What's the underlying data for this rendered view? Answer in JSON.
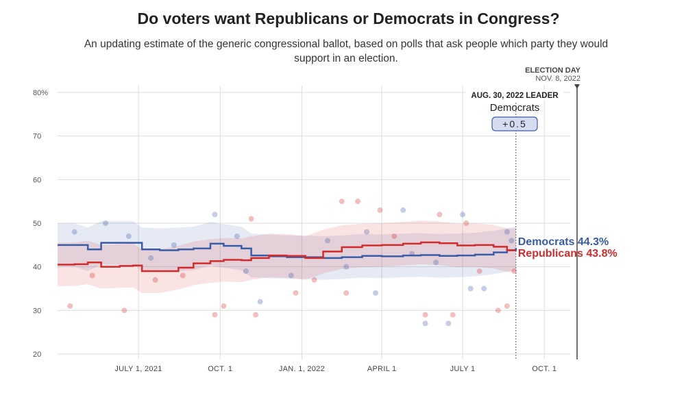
{
  "title": "Do voters want Republicans or Democrats in Congress?",
  "subtitle": "An updating estimate of the generic congressional ballot, based on polls that ask people which party they would support in an election.",
  "annotations": {
    "election_day_label": "ELECTION DAY",
    "election_day_date": "NOV. 8, 2022",
    "leader_label": "AUG. 30, 2022 LEADER",
    "leader_party": "Democrats",
    "leader_margin": "+0.5"
  },
  "colors": {
    "democrats": "#3a5ba8",
    "republicans": "#d42a2a",
    "grid": "#dddddd"
  },
  "chart_data": {
    "type": "line",
    "title": "Do voters want Republicans or Democrats in Congress?",
    "ylim": [
      20,
      80
    ],
    "yticks": [
      20,
      30,
      40,
      50,
      60,
      70,
      80
    ],
    "ytick_labels": [
      "20",
      "30",
      "40",
      "50",
      "60",
      "70",
      "80%"
    ],
    "xlim": [
      "2021-04-01",
      "2022-11-15"
    ],
    "xticks": [
      "2021-07-01",
      "2021-10-01",
      "2022-01-01",
      "2022-04-01",
      "2022-07-01",
      "2022-10-01"
    ],
    "xtick_labels": [
      "JULY 1, 2021",
      "OCT. 1",
      "JAN. 1, 2022",
      "APRIL 1",
      "JULY 1",
      "OCT. 1"
    ],
    "grid": true,
    "current_date": "2022-08-30",
    "election_date": "2022-11-08",
    "uncertainty_halfwidth": 5,
    "series": [
      {
        "name": "Democrats",
        "end_label": "44.3%",
        "color": "#3a5ba8",
        "x": [
          "2021-04-01",
          "2021-04-20",
          "2021-05-05",
          "2021-05-20",
          "2021-06-10",
          "2021-06-25",
          "2021-07-05",
          "2021-07-25",
          "2021-08-15",
          "2021-09-01",
          "2021-09-20",
          "2021-10-05",
          "2021-10-25",
          "2021-11-05",
          "2021-11-25",
          "2021-12-15",
          "2022-01-05",
          "2022-01-25",
          "2022-02-15",
          "2022-03-10",
          "2022-04-01",
          "2022-04-25",
          "2022-05-15",
          "2022-06-05",
          "2022-06-25",
          "2022-07-15",
          "2022-08-05",
          "2022-08-20",
          "2022-08-30"
        ],
        "y": [
          45,
          45,
          44,
          45.5,
          45.5,
          45.5,
          44,
          43.8,
          44,
          44.2,
          45.3,
          44.8,
          44.2,
          42.6,
          42.4,
          42.2,
          42.2,
          42,
          42.2,
          42.5,
          42.4,
          42.6,
          42.7,
          42.5,
          42.6,
          42.8,
          43.3,
          43.8,
          44.3
        ]
      },
      {
        "name": "Republicans",
        "end_label": "43.8%",
        "color": "#d42a2a",
        "x": [
          "2021-04-01",
          "2021-04-20",
          "2021-05-05",
          "2021-05-20",
          "2021-06-10",
          "2021-06-25",
          "2021-07-05",
          "2021-07-25",
          "2021-08-15",
          "2021-09-01",
          "2021-09-20",
          "2021-10-05",
          "2021-10-25",
          "2021-11-05",
          "2021-11-25",
          "2021-12-15",
          "2022-01-05",
          "2022-01-25",
          "2022-02-15",
          "2022-03-10",
          "2022-04-01",
          "2022-04-25",
          "2022-05-15",
          "2022-06-05",
          "2022-06-25",
          "2022-07-15",
          "2022-08-05",
          "2022-08-20",
          "2022-08-30"
        ],
        "y": [
          40.5,
          40.6,
          41,
          40,
          40.2,
          40.3,
          39,
          39,
          39.8,
          40.8,
          41.3,
          41.6,
          41.5,
          42,
          42.6,
          42.5,
          42,
          43.5,
          44.5,
          44.9,
          45,
          45.3,
          45.6,
          45.4,
          44.9,
          45,
          44.6,
          43.8,
          43.8
        ]
      }
    ],
    "polls": {
      "Democrats": [
        [
          "2021-04-20",
          48
        ],
        [
          "2021-05-25",
          50
        ],
        [
          "2021-06-20",
          47
        ],
        [
          "2021-08-10",
          45
        ],
        [
          "2021-09-25",
          52
        ],
        [
          "2021-10-20",
          47
        ],
        [
          "2021-11-15",
          32
        ],
        [
          "2021-12-20",
          38
        ],
        [
          "2022-01-30",
          46
        ],
        [
          "2022-03-15",
          48
        ],
        [
          "2022-03-25",
          34
        ],
        [
          "2022-04-25",
          53
        ],
        [
          "2022-05-20",
          27
        ],
        [
          "2022-06-15",
          27
        ],
        [
          "2022-07-01",
          52
        ],
        [
          "2022-07-10",
          35
        ],
        [
          "2022-07-25",
          35
        ],
        [
          "2022-08-20",
          48
        ],
        [
          "2021-07-15",
          42
        ],
        [
          "2021-10-30",
          39
        ],
        [
          "2022-02-20",
          40
        ],
        [
          "2022-05-05",
          43
        ],
        [
          "2022-06-01",
          41
        ],
        [
          "2022-08-25",
          46
        ]
      ],
      "Republicans": [
        [
          "2021-04-15",
          31
        ],
        [
          "2021-05-10",
          38
        ],
        [
          "2021-06-15",
          30
        ],
        [
          "2021-07-20",
          37
        ],
        [
          "2021-09-25",
          29
        ],
        [
          "2021-10-05",
          31
        ],
        [
          "2021-11-10",
          29
        ],
        [
          "2021-11-05",
          51
        ],
        [
          "2021-12-25",
          34
        ],
        [
          "2022-01-15",
          37
        ],
        [
          "2022-02-15",
          55
        ],
        [
          "2022-02-20",
          34
        ],
        [
          "2022-03-05",
          55
        ],
        [
          "2022-03-30",
          53
        ],
        [
          "2022-05-20",
          29
        ],
        [
          "2022-06-05",
          52
        ],
        [
          "2022-06-20",
          29
        ],
        [
          "2022-07-05",
          50
        ],
        [
          "2022-08-10",
          30
        ],
        [
          "2022-08-20",
          31
        ],
        [
          "2021-08-20",
          38
        ],
        [
          "2022-04-15",
          47
        ],
        [
          "2022-07-20",
          39
        ],
        [
          "2022-08-28",
          39
        ]
      ]
    }
  }
}
